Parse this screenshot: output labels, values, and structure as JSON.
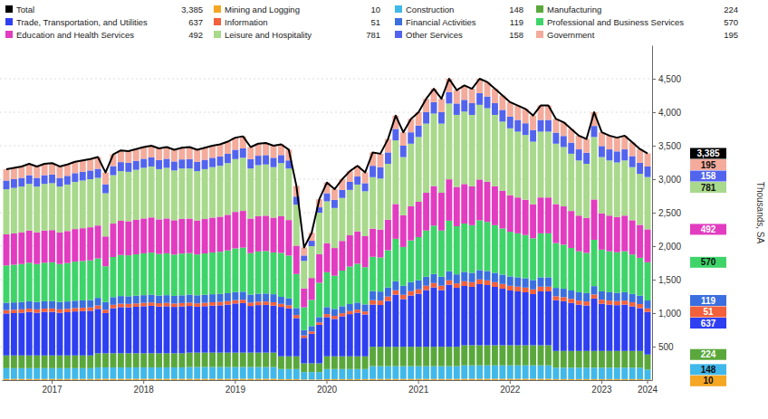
{
  "chart_data": {
    "type": "bar",
    "stacked": true,
    "grid": true,
    "ylabel": "Thousands, SA",
    "ylim": [
      0,
      5000
    ],
    "yticks": [
      500,
      {
        "value": 1000,
        "label": "1,000"
      },
      {
        "value": 1500,
        "label": "1,500"
      },
      {
        "value": 2000,
        "label": "2,000"
      },
      {
        "value": 2500,
        "label": "2,500"
      },
      {
        "value": 3000,
        "label": "3,000"
      },
      {
        "value": 3500,
        "label": "3,500"
      },
      {
        "value": 4000,
        "label": "4,000"
      },
      {
        "value": 4500,
        "label": "4,500"
      }
    ],
    "categories": [
      null,
      null,
      null,
      null,
      null,
      null,
      "2017",
      null,
      null,
      null,
      null,
      null,
      null,
      null,
      null,
      null,
      null,
      null,
      "2018",
      null,
      null,
      null,
      null,
      null,
      null,
      null,
      null,
      null,
      null,
      null,
      "2019",
      null,
      null,
      null,
      null,
      null,
      null,
      null,
      null,
      null,
      null,
      null,
      "2020",
      null,
      null,
      null,
      null,
      null,
      null,
      null,
      null,
      null,
      null,
      null,
      "2021",
      null,
      null,
      null,
      null,
      null,
      null,
      null,
      null,
      null,
      null,
      null,
      "2022",
      null,
      null,
      null,
      null,
      null,
      null,
      null,
      null,
      null,
      null,
      null,
      "2023",
      null,
      null,
      null,
      null,
      null,
      "2024"
    ],
    "series": [
      {
        "name": "Total",
        "type": "line",
        "color": "#000000",
        "last_label": "3,385",
        "values": [
          3150,
          3170,
          3190,
          3230,
          3190,
          3230,
          3240,
          3190,
          3220,
          3260,
          3280,
          3300,
          3330,
          3100,
          3370,
          3430,
          3420,
          3450,
          3480,
          3500,
          3460,
          3480,
          3440,
          3470,
          3480,
          3440,
          3470,
          3500,
          3520,
          3560,
          3620,
          3640,
          3480,
          3530,
          3540,
          3500,
          3520,
          3440,
          2900,
          1980,
          2200,
          2700,
          2950,
          2850,
          3000,
          3120,
          3200,
          3100,
          3400,
          3380,
          3600,
          3950,
          3700,
          3900,
          4000,
          4200,
          4350,
          4200,
          4500,
          4330,
          4400,
          4350,
          4500,
          4450,
          4350,
          4250,
          4150,
          4100,
          4050,
          3950,
          4100,
          4100,
          3900,
          3850,
          3750,
          3650,
          3600,
          4000,
          3700,
          3650,
          3620,
          3650,
          3550,
          3450,
          3385
        ]
      },
      {
        "name": "Mining and Logging",
        "color": "#f5a623",
        "values": [
          18,
          18,
          18,
          18,
          18,
          18,
          18,
          18,
          18,
          18,
          18,
          18,
          20,
          20,
          20,
          20,
          20,
          20,
          20,
          20,
          20,
          20,
          20,
          20,
          20,
          20,
          20,
          20,
          20,
          20,
          20,
          20,
          20,
          20,
          20,
          20,
          15,
          15,
          15,
          10,
          10,
          10,
          15,
          15,
          15,
          15,
          15,
          15,
          18,
          18,
          18,
          18,
          18,
          18,
          18,
          18,
          18,
          18,
          18,
          18,
          20,
          20,
          20,
          20,
          20,
          20,
          20,
          20,
          20,
          20,
          20,
          20,
          15,
          15,
          15,
          15,
          15,
          15,
          15,
          15,
          15,
          15,
          15,
          15,
          10
        ]
      },
      {
        "name": "Construction",
        "color": "#40b8ea",
        "values": [
          160,
          160,
          160,
          160,
          160,
          160,
          160,
          160,
          160,
          160,
          160,
          160,
          170,
          170,
          170,
          170,
          170,
          170,
          170,
          170,
          170,
          170,
          170,
          170,
          175,
          175,
          175,
          175,
          175,
          175,
          175,
          175,
          175,
          175,
          175,
          175,
          150,
          150,
          150,
          110,
          110,
          110,
          150,
          150,
          150,
          150,
          150,
          150,
          190,
          190,
          190,
          190,
          190,
          190,
          190,
          190,
          190,
          190,
          190,
          190,
          200,
          200,
          200,
          200,
          200,
          200,
          200,
          200,
          200,
          200,
          200,
          200,
          170,
          170,
          170,
          170,
          170,
          170,
          170,
          170,
          170,
          170,
          170,
          170,
          148
        ]
      },
      {
        "name": "Manufacturing",
        "color": "#5aa83c",
        "values": [
          190,
          190,
          190,
          190,
          190,
          190,
          190,
          190,
          190,
          190,
          190,
          190,
          210,
          210,
          210,
          210,
          210,
          210,
          210,
          210,
          210,
          210,
          210,
          210,
          215,
          215,
          215,
          215,
          215,
          215,
          215,
          215,
          215,
          215,
          215,
          215,
          190,
          190,
          190,
          130,
          130,
          130,
          190,
          190,
          190,
          190,
          190,
          190,
          290,
          290,
          290,
          290,
          290,
          290,
          290,
          290,
          290,
          290,
          290,
          290,
          300,
          300,
          300,
          300,
          300,
          300,
          300,
          300,
          300,
          300,
          300,
          300,
          250,
          250,
          250,
          250,
          250,
          250,
          250,
          250,
          250,
          250,
          250,
          250,
          224
        ]
      },
      {
        "name": "Trade, Transportation, and Utilities",
        "color": "#2e3ff2",
        "values": [
          627,
          632,
          638,
          649,
          638,
          649,
          651,
          638,
          646,
          657,
          662,
          667,
          663,
          601,
          674,
          690,
          687,
          695,
          703,
          709,
          698,
          703,
          693,
          701,
          697,
          686,
          694,
          702,
          707,
          718,
          734,
          740,
          697,
          710,
          713,
          702,
          738,
          717,
          571,
          382,
          441,
          576,
          585,
          558,
          598,
          630,
          652,
          625,
          630,
          624,
          684,
          778,
          711,
          765,
          792,
          846,
          886,
          846,
          927,
          881,
          886,
          872,
          913,
          899,
          872,
          845,
          818,
          805,
          791,
          764,
          805,
          805,
          757,
          744,
          718,
          692,
          679,
          783,
          705,
          692,
          684,
          692,
          666,
          640,
          637
        ]
      },
      {
        "name": "Information",
        "color": "#f2603c",
        "values": [
          50,
          50,
          50,
          50,
          50,
          50,
          50,
          50,
          50,
          50,
          50,
          50,
          50,
          50,
          50,
          50,
          50,
          50,
          50,
          50,
          50,
          50,
          50,
          50,
          50,
          50,
          50,
          50,
          50,
          50,
          50,
          50,
          50,
          50,
          50,
          50,
          45,
          45,
          45,
          35,
          35,
          35,
          45,
          45,
          45,
          45,
          45,
          45,
          65,
          65,
          65,
          65,
          65,
          65,
          65,
          65,
          65,
          65,
          65,
          65,
          70,
          70,
          70,
          70,
          70,
          70,
          70,
          70,
          70,
          70,
          70,
          70,
          60,
          60,
          60,
          60,
          60,
          60,
          60,
          60,
          60,
          60,
          60,
          60,
          51
        ]
      },
      {
        "name": "Financial Activities",
        "color": "#3b6fe0",
        "values": [
          110,
          110,
          110,
          110,
          110,
          110,
          110,
          110,
          110,
          110,
          110,
          110,
          115,
          115,
          115,
          115,
          115,
          115,
          115,
          115,
          115,
          115,
          115,
          115,
          120,
          120,
          120,
          120,
          120,
          120,
          120,
          120,
          120,
          120,
          120,
          120,
          105,
          105,
          105,
          80,
          80,
          80,
          105,
          105,
          105,
          105,
          105,
          105,
          135,
          135,
          135,
          135,
          135,
          135,
          135,
          135,
          135,
          135,
          135,
          135,
          140,
          140,
          140,
          140,
          140,
          140,
          140,
          140,
          140,
          140,
          140,
          140,
          125,
          125,
          125,
          125,
          125,
          125,
          125,
          125,
          125,
          125,
          125,
          125,
          119
        ]
      },
      {
        "name": "Professional and Business Services",
        "color": "#3fd46a",
        "values": [
          557,
          562,
          567,
          576,
          567,
          576,
          579,
          567,
          574,
          584,
          588,
          593,
          589,
          534,
          599,
          613,
          611,
          618,
          625,
          630,
          620,
          625,
          616,
          623,
          619,
          610,
          617,
          624,
          629,
          638,
          653,
          658,
          619,
          631,
          634,
          624,
          656,
          637,
          508,
          340,
          392,
          512,
          520,
          496,
          532,
          560,
          580,
          556,
          513,
          509,
          557,
          634,
          579,
          623,
          645,
          689,
          722,
          689,
          755,
          718,
          722,
          711,
          744,
          733,
          711,
          689,
          667,
          656,
          645,
          623,
          656,
          656,
          669,
          658,
          635,
          612,
          600,
          692,
          623,
          612,
          605,
          612,
          589,
          566,
          570
        ]
      },
      {
        "name": "Education and Health Services",
        "color": "#e23cc0",
        "values": [
          464,
          468,
          472,
          480,
          472,
          480,
          482,
          472,
          478,
          486,
          490,
          494,
          491,
          445,
          499,
          511,
          509,
          515,
          521,
          525,
          517,
          521,
          513,
          519,
          516,
          508,
          514,
          520,
          524,
          532,
          544,
          548,
          516,
          526,
          528,
          520,
          547,
          531,
          423,
          283,
          327,
          427,
          433,
          413,
          443,
          467,
          483,
          463,
          420,
          416,
          456,
          519,
          474,
          510,
          528,
          564,
          591,
          564,
          618,
          587,
          590,
          581,
          608,
          599,
          581,
          563,
          545,
          536,
          527,
          509,
          536,
          536,
          582,
          572,
          552,
          532,
          522,
          602,
          542,
          532,
          526,
          532,
          512,
          492,
          492
        ]
      },
      {
        "name": "Leisure and Hospitality",
        "color": "#a9d98c",
        "values": [
          674,
          680,
          685,
          697,
          685,
          697,
          700,
          685,
          694,
          705,
          712,
          718,
          712,
          645,
          723,
          741,
          738,
          747,
          756,
          761,
          750,
          756,
          743,
          752,
          748,
          736,
          745,
          754,
          760,
          772,
          789,
          794,
          748,
          763,
          765,
          754,
          794,
          770,
          613,
          410,
          475,
          620,
          627,
          598,
          642,
          678,
          700,
          671,
          769,
          763,
          835,
          951,
          868,
          934,
          967,
          1033,
          1083,
          1033,
          1132,
          1076,
          1082,
          1066,
          1115,
          1099,
          1066,
          1033,
          1000,
          983,
          967,
          934,
          983,
          983,
          902,
          886,
          855,
          824,
          809,
          933,
          840,
          824,
          815,
          824,
          793,
          762,
          781
        ]
      },
      {
        "name": "Other Services",
        "color": "#5264ee",
        "values": [
          130,
          130,
          130,
          130,
          130,
          130,
          130,
          130,
          130,
          130,
          130,
          130,
          135,
          135,
          135,
          135,
          135,
          135,
          135,
          135,
          135,
          135,
          135,
          135,
          140,
          140,
          140,
          140,
          140,
          140,
          140,
          140,
          140,
          140,
          140,
          140,
          120,
          120,
          120,
          80,
          80,
          80,
          120,
          120,
          120,
          120,
          120,
          120,
          170,
          170,
          170,
          170,
          170,
          170,
          170,
          170,
          170,
          170,
          170,
          170,
          175,
          175,
          175,
          175,
          175,
          175,
          175,
          175,
          175,
          175,
          175,
          175,
          165,
          165,
          165,
          165,
          165,
          165,
          165,
          165,
          165,
          165,
          165,
          165,
          158
        ]
      },
      {
        "name": "Government",
        "color": "#f4ab9c",
        "values": [
          170,
          170,
          170,
          170,
          170,
          170,
          170,
          170,
          170,
          170,
          170,
          170,
          175,
          175,
          175,
          175,
          175,
          175,
          175,
          175,
          175,
          175,
          175,
          175,
          180,
          180,
          180,
          180,
          180,
          180,
          180,
          180,
          180,
          180,
          180,
          180,
          160,
          160,
          160,
          120,
          120,
          120,
          160,
          160,
          160,
          160,
          160,
          160,
          200,
          200,
          200,
          200,
          200,
          200,
          200,
          200,
          200,
          200,
          200,
          200,
          215,
          215,
          215,
          215,
          215,
          215,
          215,
          215,
          215,
          215,
          215,
          215,
          205,
          205,
          205,
          205,
          205,
          205,
          205,
          205,
          205,
          205,
          205,
          205,
          195
        ]
      }
    ]
  }
}
